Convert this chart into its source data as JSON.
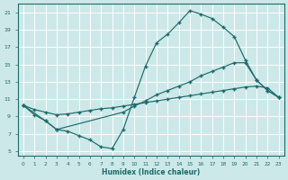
{
  "xlabel": "Humidex (Indice chaleur)",
  "bg_color": "#cde8e8",
  "grid_color": "#ffffff",
  "line_color": "#1a6b6b",
  "xlim": [
    -0.5,
    23.5
  ],
  "ylim": [
    4.5,
    22.0
  ],
  "xticks": [
    0,
    1,
    2,
    3,
    4,
    5,
    6,
    7,
    8,
    9,
    10,
    11,
    12,
    13,
    14,
    15,
    16,
    17,
    18,
    19,
    20,
    21,
    22,
    23
  ],
  "yticks": [
    5,
    7,
    9,
    11,
    13,
    15,
    17,
    19,
    21
  ],
  "curve1_x": [
    0,
    1,
    2,
    3,
    4,
    5,
    6,
    7,
    8,
    9,
    10,
    11,
    12,
    13,
    14,
    15,
    16,
    17,
    18,
    19,
    20,
    21,
    22,
    23
  ],
  "curve1_y": [
    10.3,
    9.2,
    8.5,
    7.5,
    7.3,
    6.8,
    6.3,
    5.5,
    5.3,
    7.5,
    11.2,
    14.8,
    17.5,
    18.5,
    19.8,
    21.2,
    20.8,
    20.3,
    19.3,
    18.2,
    15.5,
    13.2,
    12.0,
    11.2
  ],
  "curve2_x": [
    0,
    2,
    3,
    9,
    10,
    11,
    12,
    13,
    14,
    15,
    16,
    17,
    18,
    19,
    20,
    21,
    22,
    23
  ],
  "curve2_y": [
    10.3,
    8.5,
    7.5,
    9.5,
    10.2,
    10.8,
    11.5,
    12.0,
    12.5,
    13.0,
    13.7,
    14.2,
    14.7,
    15.2,
    15.2,
    13.2,
    12.0,
    11.2
  ],
  "curve3_x": [
    0,
    1,
    2,
    3,
    4,
    5,
    6,
    7,
    8,
    9,
    10,
    11,
    12,
    13,
    14,
    15,
    16,
    17,
    18,
    19,
    20,
    21,
    22,
    23
  ],
  "curve3_y": [
    10.3,
    9.8,
    9.5,
    9.2,
    9.3,
    9.5,
    9.7,
    9.9,
    10.0,
    10.2,
    10.4,
    10.6,
    10.8,
    11.0,
    11.2,
    11.4,
    11.6,
    11.8,
    12.0,
    12.2,
    12.4,
    12.5,
    12.3,
    11.2
  ],
  "figsize": [
    3.2,
    2.0
  ],
  "dpi": 100
}
